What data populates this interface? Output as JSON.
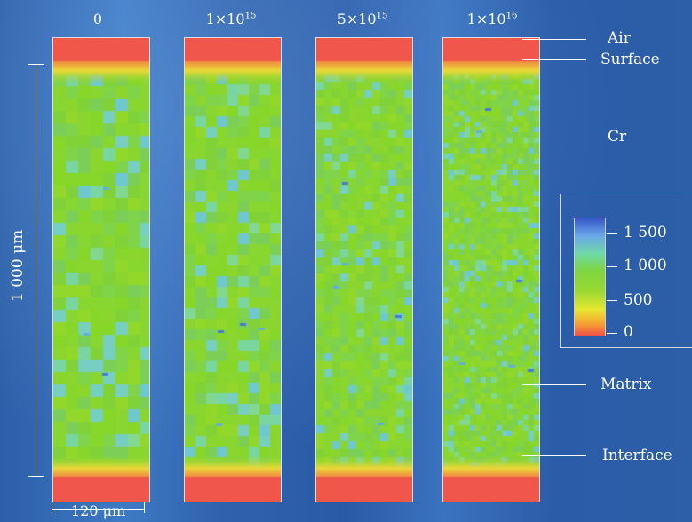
{
  "headers": [
    {
      "base": "0",
      "exp": ""
    },
    {
      "base": "1×10",
      "exp": "15"
    },
    {
      "base": "5×10",
      "exp": "15"
    },
    {
      "base": "1×10",
      "exp": "16"
    }
  ],
  "annotations": {
    "air": "Air",
    "surface": "Surface",
    "cr": "Cr",
    "matrix": "Matrix",
    "interface": "Interface"
  },
  "scale": {
    "vertical": "1 000  μm",
    "horizontal": "120  μm"
  },
  "legend": {
    "ticks": [
      "1 500",
      "1 000",
      "500",
      "0"
    ]
  },
  "colors": {
    "background": "#2c5fa8",
    "red": "#f0564a",
    "green": "#86d72a",
    "yellow": "#e8e830"
  }
}
